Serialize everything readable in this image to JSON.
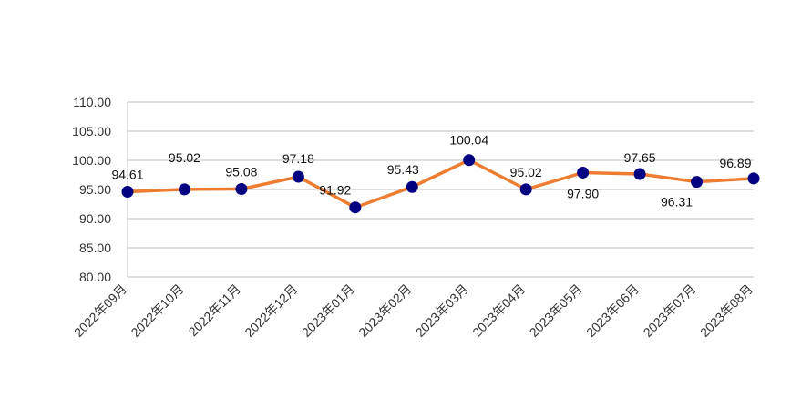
{
  "chart_data": {
    "type": "line",
    "x": [
      "2022年09月",
      "2022年10月",
      "2022年11月",
      "2022年12月",
      "2023年01月",
      "2023年02月",
      "2023年03月",
      "2023年04月",
      "2023年05月",
      "2023年06月",
      "2023年07月",
      "2023年08月"
    ],
    "series": [
      {
        "values": [
          94.61,
          95.02,
          95.08,
          97.18,
          91.92,
          95.43,
          100.04,
          95.02,
          97.9,
          97.65,
          96.31,
          96.89
        ],
        "labels": [
          "94.61",
          "95.02",
          "95.08",
          "97.18",
          "91.92",
          "95.43",
          "100.04",
          "95.02",
          "97.90",
          "97.65",
          "96.31",
          "96.89"
        ]
      }
    ],
    "y_ticks": [
      "80.00",
      "85.00",
      "90.00",
      "95.00",
      "100.00",
      "105.00",
      "110.00"
    ],
    "ylim": [
      80,
      110
    ],
    "grid": true,
    "legend": "none",
    "line_color": "#ED7D31",
    "marker_color": "#000080",
    "gridline_color": "#BFBFBF"
  }
}
